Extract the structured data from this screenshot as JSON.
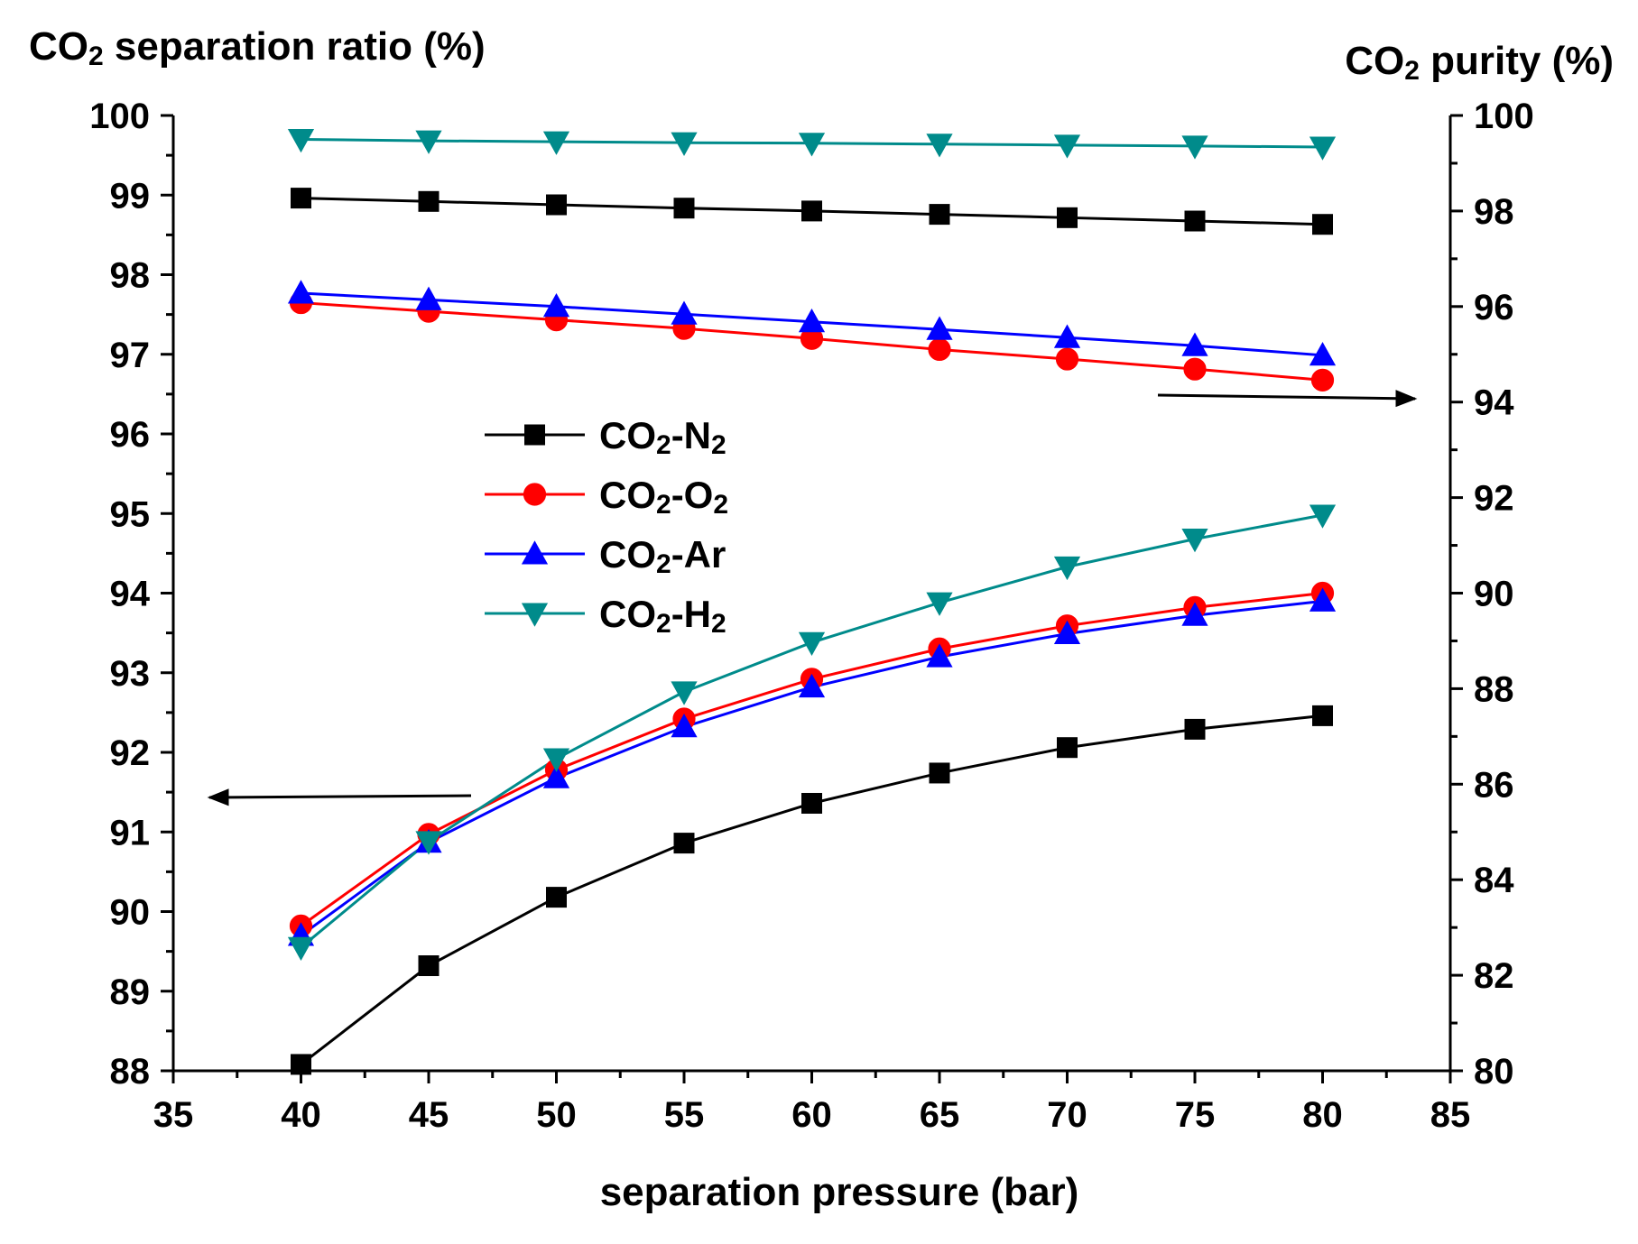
{
  "chart_data": {
    "type": "line",
    "x_label": "separation pressure (bar)",
    "y_left_label": {
      "main": "CO",
      "sub": "2",
      "rest": " separation ratio (%)"
    },
    "y_right_label": {
      "main": "CO",
      "sub": "2",
      "rest": " purity (%)"
    },
    "xlim": [
      35,
      85
    ],
    "ylim_left": [
      88,
      100
    ],
    "ylim_right": [
      80,
      100
    ],
    "x_ticks": [
      35,
      40,
      45,
      50,
      55,
      60,
      65,
      70,
      75,
      80,
      85
    ],
    "y_left_ticks": [
      88,
      89,
      90,
      91,
      92,
      93,
      94,
      95,
      96,
      97,
      98,
      99,
      100
    ],
    "y_right_ticks": [
      80,
      82,
      84,
      86,
      88,
      90,
      92,
      94,
      96,
      98,
      100
    ],
    "x": [
      40,
      45,
      50,
      55,
      60,
      65,
      70,
      75,
      80
    ],
    "series": [
      {
        "name": "CO2-N2",
        "legend": {
          "a": "CO",
          "b": "2",
          "c": "-N",
          "d": "2"
        },
        "color": "#000000",
        "marker": "square",
        "separation_ratio": [
          88.08,
          89.32,
          90.18,
          90.86,
          91.36,
          91.74,
          92.06,
          92.29,
          92.46
        ],
        "purity": [
          98.27,
          98.2,
          98.13,
          98.06,
          98.0,
          97.93,
          97.86,
          97.79,
          97.72
        ]
      },
      {
        "name": "CO2-O2",
        "legend": {
          "a": "CO",
          "b": "2",
          "c": "-O",
          "d": "2"
        },
        "color": "#ff0000",
        "marker": "circle",
        "separation_ratio": [
          89.82,
          90.97,
          91.78,
          92.42,
          92.92,
          93.3,
          93.59,
          93.82,
          94.0
        ],
        "purity": [
          96.08,
          95.9,
          95.72,
          95.54,
          95.33,
          95.1,
          94.9,
          94.69,
          94.46
        ]
      },
      {
        "name": "CO2-Ar",
        "legend": {
          "a": "CO",
          "b": "2",
          "c": "-Ar",
          "d": ""
        },
        "color": "#0000ff",
        "marker": "triangle-up",
        "separation_ratio": [
          89.7,
          90.87,
          91.68,
          92.32,
          92.82,
          93.2,
          93.49,
          93.72,
          93.9
        ],
        "purity": [
          96.28,
          96.14,
          96.0,
          95.84,
          95.68,
          95.52,
          95.35,
          95.18,
          94.98
        ]
      },
      {
        "name": "CO2-H2",
        "legend": {
          "a": "CO",
          "b": "2",
          "c": "-H",
          "d": "2"
        },
        "color": "#008b8b",
        "marker": "triangle-down",
        "separation_ratio": [
          89.55,
          90.88,
          91.92,
          92.76,
          93.38,
          93.88,
          94.33,
          94.68,
          94.98
        ],
        "purity": [
          99.5,
          99.47,
          99.45,
          99.43,
          99.42,
          99.4,
          99.38,
          99.36,
          99.34
        ]
      }
    ],
    "annotations": [
      {
        "note": "arrow pointing left toward left axis (separation ratio curves)"
      },
      {
        "note": "arrow pointing right toward right axis (purity curves)"
      }
    ]
  }
}
